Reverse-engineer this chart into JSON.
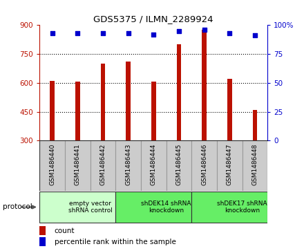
{
  "title": "GDS5375 / ILMN_2289924",
  "samples": [
    "GSM1486440",
    "GSM1486441",
    "GSM1486442",
    "GSM1486443",
    "GSM1486444",
    "GSM1486445",
    "GSM1486446",
    "GSM1486447",
    "GSM1486448"
  ],
  "counts": [
    610,
    605,
    700,
    710,
    607,
    800,
    875,
    620,
    460
  ],
  "percentiles": [
    93,
    93,
    93,
    93,
    92,
    95,
    96,
    93,
    91
  ],
  "bar_color": "#bb1100",
  "dot_color": "#0000cc",
  "ylim_left": [
    300,
    900
  ],
  "ylim_right": [
    0,
    100
  ],
  "yticks_left": [
    300,
    450,
    600,
    750,
    900
  ],
  "yticks_right": [
    0,
    25,
    50,
    75,
    100
  ],
  "group_labels": [
    "empty vector\nshRNA control",
    "shDEK14 shRNA\nknockdown",
    "shDEK17 shRNA\nknockdown"
  ],
  "group_ranges": [
    [
      0,
      3
    ],
    [
      3,
      6
    ],
    [
      6,
      9
    ]
  ],
  "group_colors": [
    "#ccffcc",
    "#66ee66",
    "#66ee66"
  ],
  "protocol_label": "protocol",
  "legend_count_label": "count",
  "legend_pct_label": "percentile rank within the sample",
  "sample_box_color": "#cccccc",
  "sample_box_edge": "#999999"
}
